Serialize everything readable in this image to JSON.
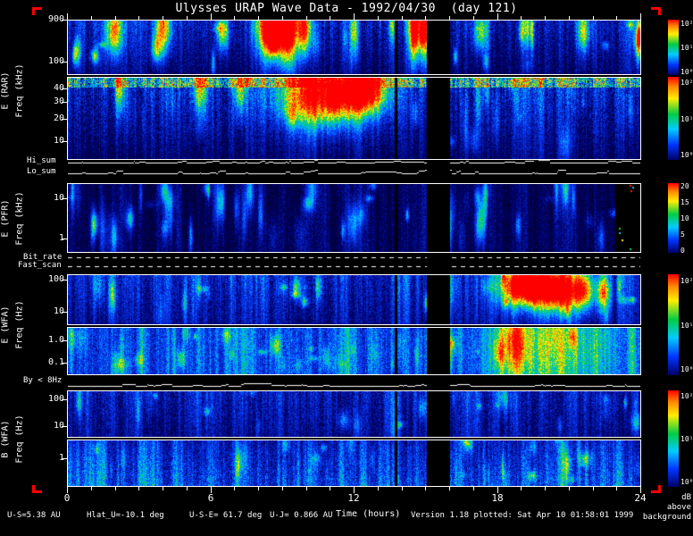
{
  "title": "Ulysses URAP Wave Data - 1992/04/30  (day 121)",
  "colors": {
    "background": "#000000",
    "text": "#ffffff",
    "corner_marks": "#ff0000"
  },
  "groups": [
    {
      "instrument": "E (RAR)",
      "axis": "Freq (kHz)"
    },
    {
      "instrument": "E (PFR)",
      "axis": "Freq (kHz)"
    },
    {
      "instrument": "E (WFA)",
      "axis": "Freq (Hz)"
    },
    {
      "instrument": "B (WFA)",
      "axis": "Freq (Hz)"
    }
  ],
  "strips": [
    {
      "label": "Hi_sum"
    },
    {
      "label": "Lo_sum"
    },
    {
      "label": "Bit_rate"
    },
    {
      "label": "Fast_scan"
    },
    {
      "label": "By < 8Hz"
    }
  ],
  "panels": {
    "rar_hi": {
      "yticks": [
        {
          "label": "900",
          "pos": 0.0
        },
        {
          "label": "100",
          "pos": 0.76
        }
      ]
    },
    "rar_lo": {
      "yticks": [
        {
          "label": "40",
          "pos": 0.14
        },
        {
          "label": "30",
          "pos": 0.3
        },
        {
          "label": "20",
          "pos": 0.5
        },
        {
          "label": "10",
          "pos": 0.77
        }
      ]
    },
    "pfr": {
      "yticks": [
        {
          "label": "10",
          "pos": 0.22
        },
        {
          "label": "1",
          "pos": 0.8
        }
      ]
    },
    "wfa_hi": {
      "yticks": [
        {
          "label": "100",
          "pos": 0.1
        },
        {
          "label": "10",
          "pos": 0.74
        }
      ]
    },
    "wfa_lo": {
      "yticks": [
        {
          "label": "1.0",
          "pos": 0.28
        },
        {
          "label": "0.1",
          "pos": 0.74
        }
      ]
    },
    "b_hi": {
      "yticks": [
        {
          "label": "100",
          "pos": 0.18
        },
        {
          "label": "10",
          "pos": 0.76
        }
      ]
    },
    "b_lo": {
      "yticks": [
        {
          "label": "1",
          "pos": 0.4
        }
      ]
    }
  },
  "colorbars": [
    {
      "for": "rar_hi",
      "ticks": [
        {
          "label": "10²",
          "pos": 0.06
        },
        {
          "label": "10¹",
          "pos": 0.5
        },
        {
          "label": "10⁰",
          "pos": 0.94
        }
      ]
    },
    {
      "for": "rar_lo",
      "ticks": [
        {
          "label": "10²",
          "pos": 0.06
        },
        {
          "label": "10¹",
          "pos": 0.5
        },
        {
          "label": "10⁰",
          "pos": 0.94
        }
      ]
    },
    {
      "for": "pfr",
      "ticks": [
        {
          "label": "20",
          "pos": 0.04
        },
        {
          "label": "15",
          "pos": 0.27
        },
        {
          "label": "10",
          "pos": 0.5
        },
        {
          "label": "5",
          "pos": 0.73
        },
        {
          "label": "0",
          "pos": 0.96
        }
      ]
    },
    {
      "for": "wfa",
      "ticks": [
        {
          "label": "10²",
          "pos": 0.06
        },
        {
          "label": "10¹",
          "pos": 0.5
        },
        {
          "label": "10⁰",
          "pos": 0.94
        }
      ]
    },
    {
      "for": "b",
      "ticks": [
        {
          "label": "10²",
          "pos": 0.06
        },
        {
          "label": "10¹",
          "pos": 0.5
        },
        {
          "label": "10⁰",
          "pos": 0.94
        }
      ]
    }
  ],
  "x_axis": {
    "label": "Time (hours)",
    "ticks": [
      "0",
      "6",
      "12",
      "18",
      "24"
    ]
  },
  "footer": {
    "us": "U-S=5.38 AU",
    "hlat": "Hlat_U=-10.1 deg",
    "use": "U-S-E= 61.7 deg",
    "uj": "U-J= 0.866 AU",
    "version": "Version 1.18 plotted: Sat Apr 10 01:58:01 1999",
    "db_caption": [
      "dB",
      "above",
      "background"
    ]
  },
  "chart_data": {
    "type": "heatmap",
    "title": "Ulysses URAP Wave Data - 1992/04/30  (day 121)",
    "xlabel": "Time (hours)",
    "x_range_hours": [
      0,
      24
    ],
    "x_ticks": [
      0,
      6,
      12,
      18,
      24
    ],
    "colorbar_units": "dB above background",
    "grid": false,
    "legend_position": "right colorbars, one per panel group",
    "panels": [
      {
        "name": "E (RAR) high band",
        "ylabel": "Freq (kHz)",
        "y_scale": "log",
        "y_tick_labels": [
          "900",
          "100"
        ],
        "colorbar_ticks": [
          "10²",
          "10¹",
          "10⁰"
        ],
        "description": "Blue background with patchy green emission; intense red/yellow drifting radio bursts near hours 3, 6, 9-11 and 14"
      },
      {
        "name": "E (RAR) low band",
        "ylabel": "Freq (kHz)",
        "y_scale": "log",
        "y_tick_labels": [
          "40",
          "30",
          "20",
          "10"
        ],
        "colorbar_ticks": [
          "10²",
          "10¹",
          "10⁰"
        ],
        "description": "Red band along top edge for most of the day; strong broadband red enhancement hours 9-13; vertical blue striations; dark at lowest frequencies"
      },
      {
        "name": "E (PFR)",
        "ylabel": "Freq (kHz)",
        "y_scale": "log",
        "y_tick_labels": [
          "10",
          "1"
        ],
        "colorbar_ticks": [
          "20",
          "15",
          "10",
          "5",
          "0"
        ],
        "description": "Mostly weak dark-blue background with sparse impulsive spikes; black segment with a few colored pixels near end of day"
      },
      {
        "name": "E (WFA) high band",
        "ylabel": "Freq (Hz)",
        "y_scale": "log",
        "y_tick_labels": [
          "100",
          "10"
        ],
        "colorbar_ticks": [
          "10²",
          "10¹",
          "10⁰"
        ],
        "description": "Striated blue/green background; strong red-yellow enhancement near hours 18-21"
      },
      {
        "name": "E (WFA) low band",
        "ylabel": "Freq (Hz)",
        "y_scale": "log",
        "y_tick_labels": [
          "1.0",
          "0.1"
        ],
        "colorbar_ticks": [
          "10²",
          "10¹",
          "10⁰"
        ],
        "description": "Dense blue/cyan striations, brighter green-yellow region hours 18-22"
      },
      {
        "name": "B (WFA) high band",
        "ylabel": "Freq (Hz)",
        "y_scale": "log",
        "y_tick_labels": [
          "100",
          "10"
        ],
        "colorbar_ticks": [
          "10²",
          "10¹",
          "10⁰"
        ],
        "description": "Weak striated blue background with sparse green columns"
      },
      {
        "name": "B (WFA) low band",
        "ylabel": "Freq (Hz)",
        "y_scale": "log",
        "y_tick_labels": [
          "1"
        ],
        "colorbar_ticks": [
          "10²",
          "10¹",
          "10⁰"
        ],
        "description": "Striated blue/green background, slightly brighter at lowest frequencies"
      }
    ],
    "line_strips": [
      "Hi_sum",
      "Lo_sum",
      "Bit_rate",
      "Fast_scan",
      "By < 8Hz"
    ],
    "data_gaps_hours": [
      [
        15.0,
        16.1
      ],
      [
        13.7,
        13.8
      ]
    ]
  }
}
